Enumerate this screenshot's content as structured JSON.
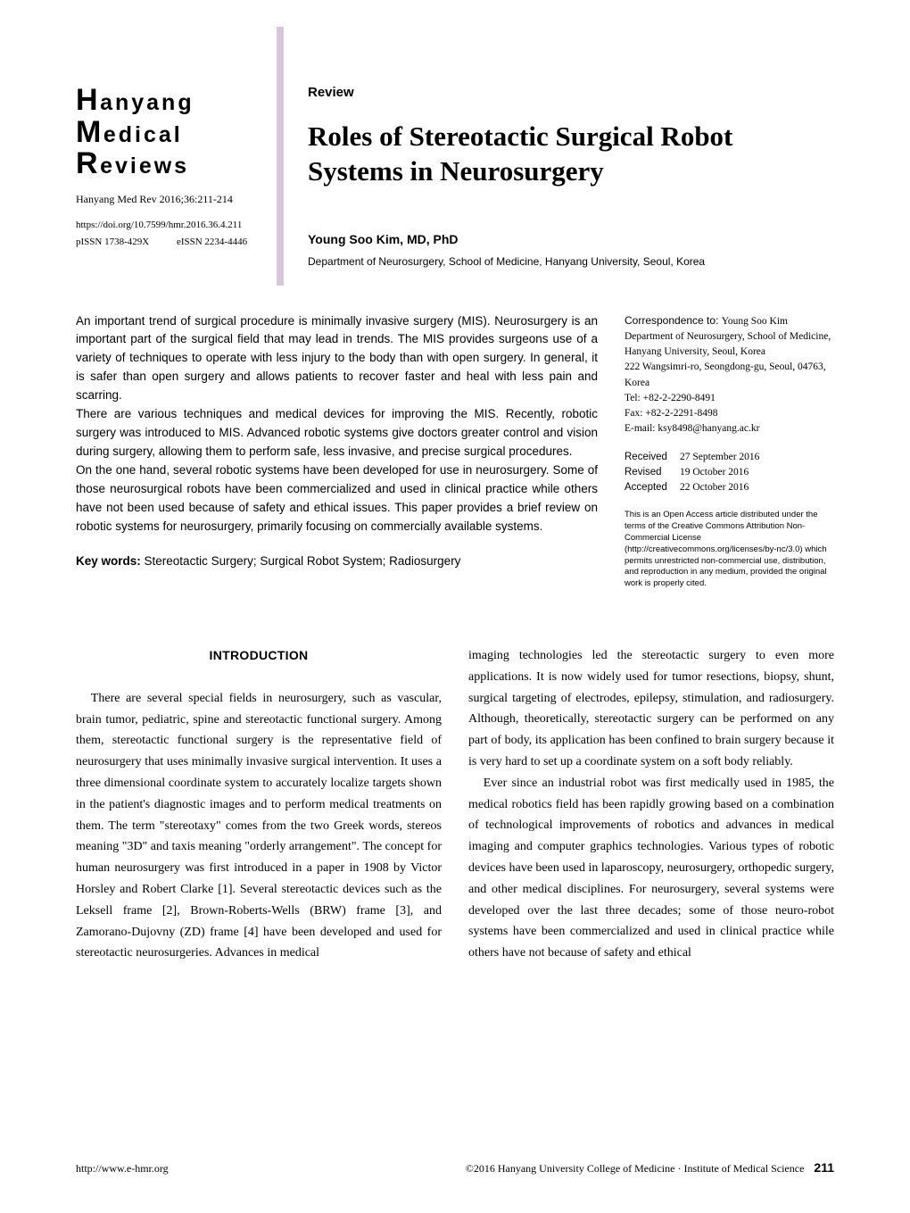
{
  "journal": {
    "line1_initial": "H",
    "line1_rest": "anyang",
    "line2_initial": "M",
    "line2_rest": "edical",
    "line3_initial": "R",
    "line3_rest": "eviews",
    "citation": "Hanyang Med Rev 2016;36:211-214",
    "doi": "https://doi.org/10.7599/hmr.2016.36.4.211",
    "pissn_label": "pISSN 1738-429X",
    "eissn_label": "eISSN 2234-4446"
  },
  "header": {
    "section_label": "Review",
    "title": "Roles of Stereotactic Surgical Robot Systems in Neurosurgery",
    "author": "Young Soo Kim, MD, PhD",
    "affiliation": "Department of Neurosurgery, School of Medicine, Hanyang University, Seoul, Korea"
  },
  "abstract": {
    "p1": "An important trend of surgical procedure is minimally invasive surgery (MIS). Neurosurgery is an important part of the surgical field that may lead in trends. The MIS provides surgeons use of a variety of techniques to operate with less injury to the body than with open surgery. In general, it is safer than open surgery and allows patients to recover faster and heal with less pain and scarring.",
    "p2": "There are various techniques and medical devices for improving the MIS. Recently, robotic surgery was introduced to MIS. Advanced robotic systems give doctors greater control and vision during surgery, allowing them to perform safe, less invasive, and precise surgical procedures.",
    "p3": "On the one hand, several robotic systems have been developed for use in neurosurgery. Some of those neurosurgical robots have been commercialized and used in clinical practice while others have not been used because of safety and ethical issues. This paper provides a brief review on robotic systems for neurosurgery, primarily focusing on commercially available systems.",
    "keywords_label": "Key words:",
    "keywords": " Stereotactic Surgery; Surgical Robot System; Radiosurgery"
  },
  "correspondence": {
    "label": "Correspondence to: ",
    "name": "Young Soo Kim",
    "addr1": "Department of Neurosurgery, School of Medicine, Hanyang University, Seoul, Korea",
    "addr2": "222 Wangsimri-ro, Seongdong-gu, Seoul, 04763, Korea",
    "tel": "Tel: +82-2-2290-8491",
    "fax": "Fax: +82-2-2291-8498",
    "email": "E-mail: ksy8498@hanyang.ac.kr",
    "received_label": "Received",
    "received": "27 September 2016",
    "revised_label": "Revised",
    "revised": "19 October 2016",
    "accepted_label": "Accepted",
    "accepted": "22 October 2016",
    "license": "This is an Open Access article distributed under the terms of the Creative Commons Attribution Non-Commercial License (http://creativecommons.org/licenses/by-nc/3.0) which permits unrestricted non-commercial use, distribution, and reproduction in any medium, provided the original work is properly cited."
  },
  "body": {
    "heading": "INTRODUCTION",
    "col1": "There are several special fields in neurosurgery, such as vascular, brain tumor, pediatric, spine and stereotactic functional surgery. Among them, stereotactic functional surgery is the representative field of neurosurgery that uses minimally invasive surgical intervention. It uses a three dimensional coordinate system to accurately localize targets shown in the patient's diagnostic images and to perform medical treatments on them. The term \"stereotaxy\" comes from the two Greek words, stereos meaning \"3D\" and taxis meaning \"orderly arrangement\". The concept for human neurosurgery was first introduced in a paper in 1908 by Victor Horsley and Robert Clarke [1]. Several stereotactic devices such as the Leksell frame [2], Brown-Roberts-Wells (BRW) frame [3], and Zamorano-Dujovny (ZD) frame [4] have been developed and used for stereotactic neurosurgeries. Advances in medical",
    "col2": "imaging technologies led the stereotactic surgery to even more applications. It is now widely used for tumor resections, biopsy, shunt, surgical targeting of electrodes, epilepsy, stimulation, and radiosurgery. Although, theoretically, stereotactic surgery can be performed on any part of body, its application has been confined to brain surgery because it is very hard to set up a coordinate system on a soft body reliably.",
    "col2b": "Ever since an industrial robot was first medically used in 1985, the medical robotics field has been rapidly growing based on a combination of technological improvements of robotics and advances in medical imaging and computer graphics technologies. Various types of robotic devices have been used in laparoscopy, neurosurgery, orthopedic surgery, and other medical disciplines. For neurosurgery, several systems were developed over the last three decades; some of those neuro-robot systems have been commercialized and used in clinical practice while others have not because of safety and ethical"
  },
  "footer": {
    "url": "http://www.e-hmr.org",
    "copyright": "©2016 Hanyang University College of Medicine · Institute of Medical Science",
    "pagenum": "211"
  },
  "colors": {
    "accent_bar": "#d7c6d7",
    "text": "#000000",
    "background": "#ffffff"
  }
}
